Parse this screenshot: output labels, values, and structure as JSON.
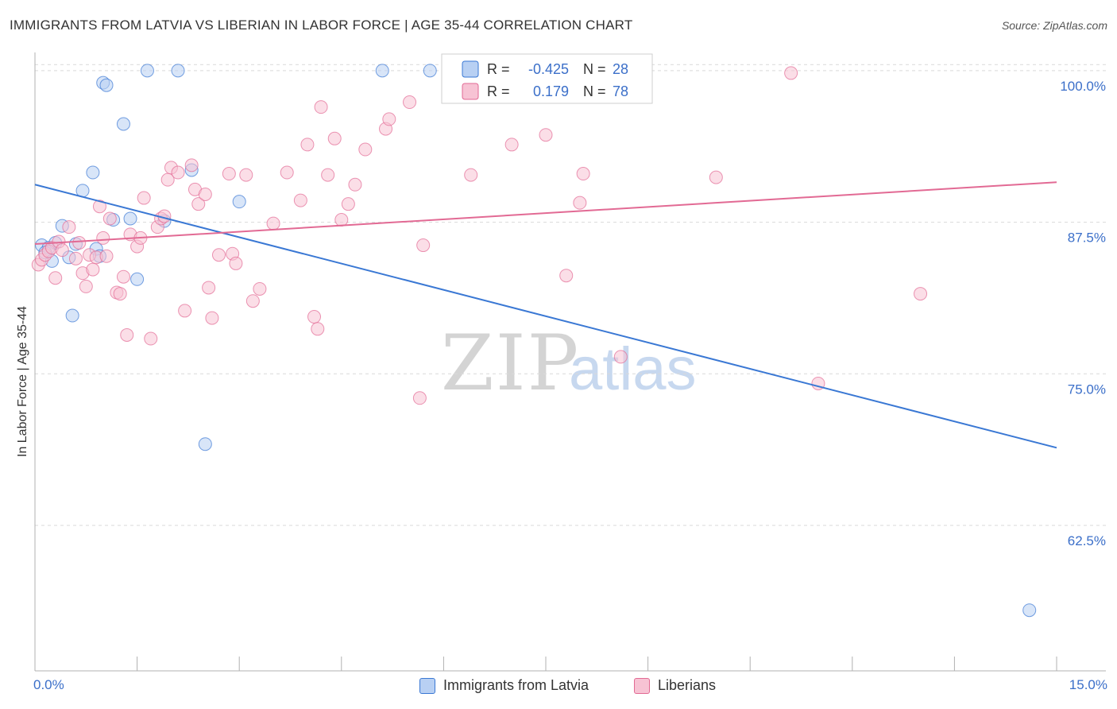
{
  "title": "IMMIGRANTS FROM LATVIA VS LIBERIAN IN LABOR FORCE | AGE 35-44 CORRELATION CHART",
  "source": "Source: ZipAtlas.com",
  "watermark": {
    "zip": "ZIP",
    "atlas": "atlas"
  },
  "colors": {
    "blue": "#3a78d4",
    "blue_fill": "#b8d0f3",
    "pink": "#e26a94",
    "pink_fill": "#f7c3d4",
    "tick_text": "#3b6fc9",
    "grid": "#d9d9d9"
  },
  "legend_top": {
    "rows": [
      {
        "r_label": "R =",
        "r_value": "-0.425",
        "n_label": "N =",
        "n_value": "28",
        "color": "blue"
      },
      {
        "r_label": "R =",
        "r_value": "0.179",
        "n_label": "N =",
        "n_value": "78",
        "color": "pink"
      }
    ]
  },
  "legend_bottom": [
    {
      "label": "Immigrants from Latvia",
      "color": "blue"
    },
    {
      "label": "Liberians",
      "color": "pink"
    }
  ],
  "chart_data": {
    "type": "scatter",
    "title": "IMMIGRANTS FROM LATVIA VS LIBERIAN IN LABOR FORCE | AGE 35-44 CORRELATION CHART",
    "xlabel": "",
    "ylabel": "In Labor Force | Age 35-44",
    "xlim": [
      0,
      15
    ],
    "ylim": [
      50.5,
      101.5
    ],
    "x_tick_labels": [
      {
        "value": 0,
        "label": "0.0%"
      },
      {
        "value": 15,
        "label": "15.0%"
      }
    ],
    "y_tick_labels": [
      {
        "value": 100,
        "label": "100.0%"
      },
      {
        "value": 87.5,
        "label": "87.5%"
      },
      {
        "value": 75,
        "label": "75.0%"
      },
      {
        "value": 62.5,
        "label": "62.5%"
      }
    ],
    "x_minor_ticks": [
      0,
      1.5,
      3,
      4.5,
      6,
      7.5,
      9,
      10.5,
      12,
      13.5,
      15
    ],
    "grid": true,
    "legend_position": "top-center",
    "series": [
      {
        "name": "Immigrants from Latvia",
        "color": "blue",
        "trend": {
          "x": [
            0,
            15
          ],
          "y": [
            90.6,
            68.9
          ]
        },
        "points": [
          [
            0.1,
            85.6
          ],
          [
            0.2,
            85.4
          ],
          [
            0.3,
            85.8
          ],
          [
            0.4,
            87.2
          ],
          [
            0.5,
            84.6
          ],
          [
            0.6,
            85.7
          ],
          [
            0.55,
            79.8
          ],
          [
            0.7,
            90.1
          ],
          [
            0.85,
            91.6
          ],
          [
            0.9,
            85.3
          ],
          [
            0.95,
            84.7
          ],
          [
            1.0,
            99.0
          ],
          [
            1.05,
            98.8
          ],
          [
            1.15,
            87.7
          ],
          [
            1.3,
            95.6
          ],
          [
            1.4,
            87.8
          ],
          [
            1.5,
            82.8
          ],
          [
            1.65,
            100.0
          ],
          [
            1.9,
            87.6
          ],
          [
            2.1,
            100.0
          ],
          [
            2.3,
            91.8
          ],
          [
            2.5,
            69.2
          ],
          [
            3.0,
            89.2
          ],
          [
            5.1,
            100.0
          ],
          [
            5.8,
            100.0
          ],
          [
            14.6,
            55.5
          ],
          [
            0.15,
            85.0
          ],
          [
            0.25,
            84.3
          ]
        ]
      },
      {
        "name": "Liberians",
        "color": "pink",
        "trend": {
          "x": [
            0,
            15
          ],
          "y": [
            85.7,
            90.8
          ]
        },
        "points": [
          [
            0.05,
            84.0
          ],
          [
            0.1,
            84.4
          ],
          [
            0.15,
            84.8
          ],
          [
            0.2,
            85.1
          ],
          [
            0.25,
            85.4
          ],
          [
            0.3,
            82.9
          ],
          [
            0.35,
            85.9
          ],
          [
            0.4,
            85.2
          ],
          [
            0.5,
            87.1
          ],
          [
            0.6,
            84.5
          ],
          [
            0.65,
            85.8
          ],
          [
            0.7,
            83.3
          ],
          [
            0.75,
            82.2
          ],
          [
            0.8,
            84.8
          ],
          [
            0.85,
            83.6
          ],
          [
            0.9,
            84.6
          ],
          [
            0.95,
            88.8
          ],
          [
            1.0,
            86.2
          ],
          [
            1.05,
            84.7
          ],
          [
            1.1,
            87.8
          ],
          [
            1.2,
            81.7
          ],
          [
            1.25,
            81.6
          ],
          [
            1.3,
            83.0
          ],
          [
            1.35,
            78.2
          ],
          [
            1.4,
            86.5
          ],
          [
            1.5,
            85.5
          ],
          [
            1.55,
            86.2
          ],
          [
            1.6,
            89.5
          ],
          [
            1.7,
            77.9
          ],
          [
            1.8,
            87.1
          ],
          [
            1.85,
            87.8
          ],
          [
            1.9,
            88.0
          ],
          [
            1.95,
            91.0
          ],
          [
            2.0,
            92.0
          ],
          [
            2.1,
            91.6
          ],
          [
            2.2,
            80.2
          ],
          [
            2.3,
            92.2
          ],
          [
            2.35,
            90.2
          ],
          [
            2.4,
            89.0
          ],
          [
            2.5,
            89.8
          ],
          [
            2.55,
            82.1
          ],
          [
            2.6,
            79.6
          ],
          [
            2.7,
            84.8
          ],
          [
            2.85,
            91.5
          ],
          [
            2.9,
            84.9
          ],
          [
            2.95,
            84.1
          ],
          [
            3.1,
            91.4
          ],
          [
            3.2,
            81.0
          ],
          [
            3.3,
            82.0
          ],
          [
            3.5,
            87.4
          ],
          [
            3.7,
            91.6
          ],
          [
            3.9,
            89.3
          ],
          [
            4.0,
            93.9
          ],
          [
            4.1,
            79.7
          ],
          [
            4.15,
            78.7
          ],
          [
            4.2,
            97.0
          ],
          [
            4.3,
            91.4
          ],
          [
            4.4,
            94.4
          ],
          [
            4.5,
            87.7
          ],
          [
            4.6,
            89.0
          ],
          [
            4.7,
            90.6
          ],
          [
            4.85,
            93.5
          ],
          [
            5.15,
            95.2
          ],
          [
            5.2,
            96.0
          ],
          [
            5.5,
            97.4
          ],
          [
            5.65,
            73.0
          ],
          [
            5.7,
            85.6
          ],
          [
            6.4,
            91.4
          ],
          [
            7.0,
            93.9
          ],
          [
            7.5,
            94.7
          ],
          [
            7.8,
            83.1
          ],
          [
            8.0,
            89.1
          ],
          [
            8.05,
            91.5
          ],
          [
            8.6,
            76.4
          ],
          [
            10.0,
            91.2
          ],
          [
            11.1,
            99.8
          ],
          [
            13.0,
            81.6
          ],
          [
            11.5,
            74.2
          ]
        ]
      }
    ]
  }
}
